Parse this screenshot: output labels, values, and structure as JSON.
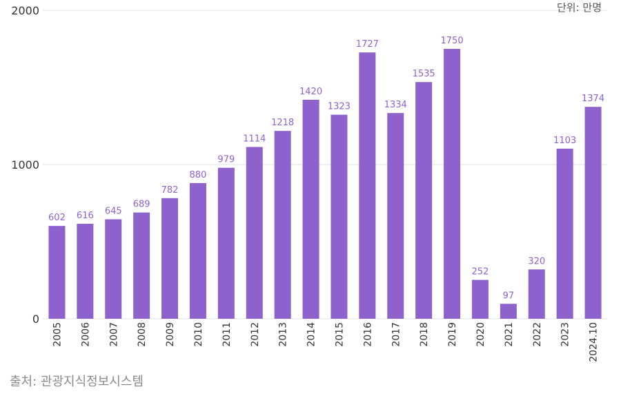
{
  "unit_label": "단위: 만명",
  "source_label": "출처: 관광지식정보시스템",
  "colors": {
    "bar": "#8e62cc",
    "value_label": "#8e62cc",
    "grid": "#e0e0e0",
    "axis_text": "#333333"
  },
  "chart_data": {
    "type": "bar",
    "title": "",
    "xlabel": "",
    "ylabel": "",
    "ylim": [
      0,
      2000
    ],
    "yticks": [
      0,
      1000,
      2000
    ],
    "grid": true,
    "categories": [
      "2005",
      "2006",
      "2007",
      "2008",
      "2009",
      "2010",
      "2011",
      "2012",
      "2013",
      "2014",
      "2015",
      "2016",
      "2017",
      "2018",
      "2019",
      "2020",
      "2021",
      "2022",
      "2023",
      "2024.10"
    ],
    "values": [
      602,
      616,
      645,
      689,
      782,
      880,
      979,
      1114,
      1218,
      1420,
      1323,
      1727,
      1334,
      1535,
      1750,
      252,
      97,
      320,
      1103,
      1374
    ]
  }
}
